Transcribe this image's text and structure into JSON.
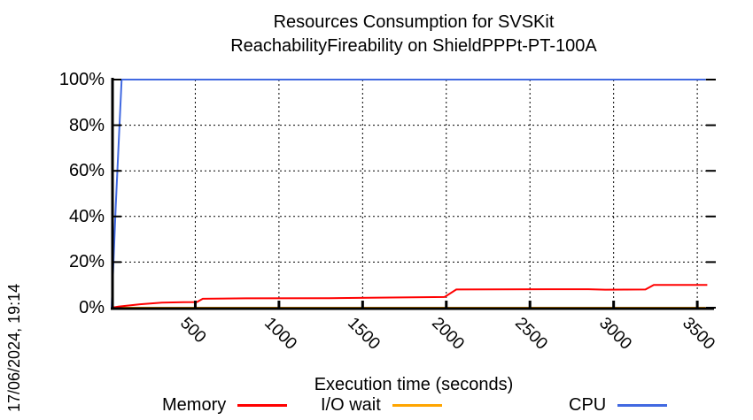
{
  "header": {
    "title_line1": "Resources Consumption for SVSKit",
    "title_line2": "ReachabilityFireability on ShieldPPPt-PT-100A"
  },
  "side": {
    "date_label": "17/06/2024, 19:14"
  },
  "chart_data": {
    "type": "line",
    "title": "Resources Consumption for SVSKit / ReachabilityFireability on ShieldPPPt-PT-100A",
    "xlabel": "Execution time (seconds)",
    "ylabel": "",
    "xlim": [
      0,
      3600
    ],
    "ylim": [
      0,
      100
    ],
    "grid": true,
    "legend_position": "bottom",
    "x_tick_values": [
      500,
      1000,
      1500,
      2000,
      2500,
      3000,
      3500
    ],
    "x_tick_labels": [
      "500",
      "1000",
      "1500",
      "2000",
      "2500",
      "3000",
      "3500"
    ],
    "y_tick_values": [
      0,
      20,
      40,
      60,
      80,
      100
    ],
    "y_tick_labels": [
      "0%",
      "20%",
      "40%",
      "60%",
      "80%",
      "100%"
    ],
    "series": [
      {
        "name": "Memory",
        "color": "#ff0000",
        "points": [
          [
            0,
            0
          ],
          [
            40,
            0.5
          ],
          [
            170,
            1.5
          ],
          [
            300,
            2.2
          ],
          [
            430,
            2.4
          ],
          [
            510,
            2.5
          ],
          [
            545,
            3.9
          ],
          [
            800,
            4.1
          ],
          [
            1300,
            4.2
          ],
          [
            1600,
            4.4
          ],
          [
            1990,
            4.7
          ],
          [
            2060,
            8.0
          ],
          [
            2600,
            8.1
          ],
          [
            2850,
            8.1
          ],
          [
            2950,
            7.9
          ],
          [
            3190,
            8.0
          ],
          [
            3240,
            10.0
          ],
          [
            3560,
            10.0
          ]
        ]
      },
      {
        "name": "I/O wait",
        "color": "#ffa500",
        "points": [
          [
            0,
            0
          ],
          [
            3550,
            0
          ]
        ]
      },
      {
        "name": "CPU",
        "color": "#4169e1",
        "points": [
          [
            0,
            0
          ],
          [
            25,
            45
          ],
          [
            60,
            100
          ],
          [
            3550,
            100
          ]
        ]
      }
    ]
  }
}
